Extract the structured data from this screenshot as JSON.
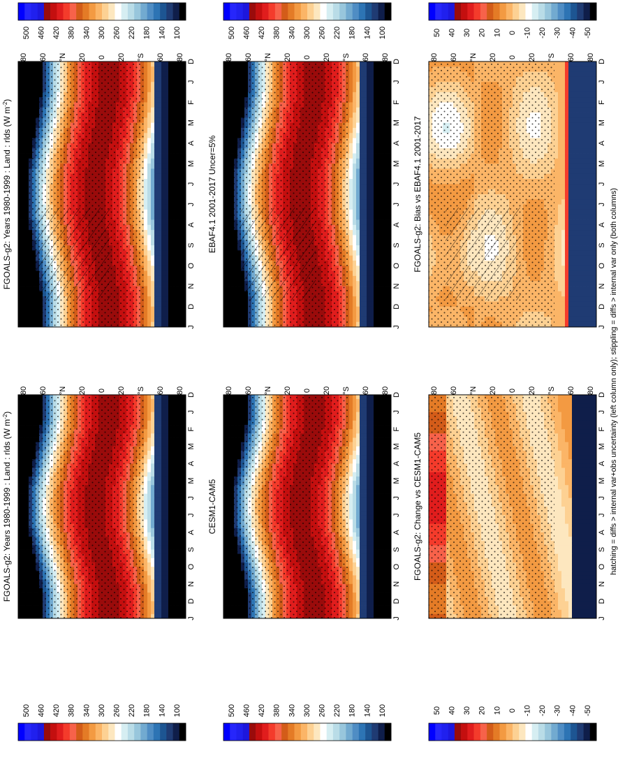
{
  "figure": {
    "footnote": "hatching = diffs > internal var+obs uncertainty (left column only); stippling = diffs > internal var only (both columns)"
  },
  "palettes": {
    "absolute": [
      "#000000",
      "#0f1e4a",
      "#1f3b73",
      "#1d5592",
      "#2d74b4",
      "#4f8dc4",
      "#72aad0",
      "#98c6dc",
      "#b9dce7",
      "#d6eef2",
      "#ffffff",
      "#fde7bf",
      "#fdd193",
      "#fbb567",
      "#f39a42",
      "#e47b26",
      "#d35c19",
      "#f7624a",
      "#f43b2b",
      "#e01d1d",
      "#c40f0f",
      "#9a0b0b",
      "#1d17dd",
      "#2020ee",
      "#2626fb",
      "#0000ff"
    ],
    "difference": [
      "#000000",
      "#0f1e4a",
      "#1f3b73",
      "#1d5592",
      "#2d74b4",
      "#4f8dc4",
      "#72aad0",
      "#98c6dc",
      "#b9dce7",
      "#d6eef2",
      "#ffffff",
      "#fde7bf",
      "#fdd193",
      "#fbb567",
      "#f39a42",
      "#e47b26",
      "#d35c19",
      "#f7624a",
      "#f43b2b",
      "#e01d1d",
      "#c40f0f",
      "#9a0b0b",
      "#1d17dd",
      "#2020ee",
      "#2626fb",
      "#0000ff"
    ]
  },
  "colorbar_labels": {
    "absolute": [
      "500",
      "460",
      "420",
      "380",
      "340",
      "300",
      "260",
      "220",
      "180",
      "140",
      "100"
    ],
    "difference": [
      "50",
      "40",
      "30",
      "20",
      "10",
      "0",
      "-10",
      "-20",
      "-30",
      "-40",
      "-50"
    ]
  },
  "axis_labels": {
    "latitude": [
      "80",
      "60",
      "°N",
      "20",
      "0",
      "20",
      "°S",
      "60",
      "80"
    ],
    "months": [
      "D",
      "J",
      "F",
      "M",
      "A",
      "M",
      "J",
      "J",
      "A",
      "S",
      "O",
      "N",
      "D",
      "J"
    ]
  },
  "chart_data": [
    {
      "type": "heatmap",
      "id": "p1",
      "title": "FGOALS-g2: Years 1980-1999 : Land : rlds (W m",
      "title_sup": "-2",
      "title_end": ")",
      "colorbar": "absolute",
      "x": "month",
      "y": "latitude",
      "y_range": [
        -90,
        90
      ],
      "x_categories": [
        "D",
        "J",
        "F",
        "M",
        "A",
        "M",
        "J",
        "J",
        "A",
        "S",
        "O",
        "N",
        "D",
        "J"
      ],
      "values_range": [
        100,
        500
      ],
      "peak": "~430 near equator (Jul–Aug, 10°N)",
      "hatching": true,
      "stippling": true
    },
    {
      "type": "heatmap",
      "id": "p2",
      "title": "FGOALS-g2: Years 1980-1999 : Land : rlds (W m",
      "title_sup": "-2",
      "title_end": ")",
      "colorbar": "absolute",
      "x": "month",
      "y": "latitude",
      "y_range": [
        -90,
        90
      ],
      "x_categories": [
        "D",
        "J",
        "F",
        "M",
        "A",
        "M",
        "J",
        "J",
        "A",
        "S",
        "O",
        "N",
        "D",
        "J"
      ],
      "values_range": [
        100,
        500
      ],
      "stippling": true
    },
    {
      "type": "heatmap",
      "id": "p3",
      "title": "EBAF4.1 2001-2017 Uncer=5%",
      "title_sup": "",
      "title_end": "",
      "colorbar": "absolute",
      "x": "month",
      "y": "latitude",
      "y_range": [
        -90,
        90
      ],
      "x_categories": [
        "D",
        "J",
        "F",
        "M",
        "A",
        "M",
        "J",
        "J",
        "A",
        "S",
        "O",
        "N",
        "D",
        "J"
      ],
      "values_range": [
        100,
        500
      ],
      "hatching": true,
      "stippling": true
    },
    {
      "type": "heatmap",
      "id": "p4",
      "title": "CESM1-CAM5",
      "title_sup": "",
      "title_end": "",
      "colorbar": "absolute",
      "x": "month",
      "y": "latitude",
      "y_range": [
        -90,
        90
      ],
      "x_categories": [
        "D",
        "J",
        "F",
        "M",
        "A",
        "M",
        "J",
        "J",
        "A",
        "S",
        "O",
        "N",
        "D",
        "J"
      ],
      "values_range": [
        100,
        500
      ],
      "stippling": true
    },
    {
      "type": "heatmap",
      "id": "p5",
      "title": "FGOALS-g2: Bias vs EBAF4.1 2001-2017",
      "title_sup": "",
      "title_end": "",
      "colorbar": "difference",
      "x": "month",
      "y": "latitude",
      "y_range": [
        -90,
        90
      ],
      "x_categories": [
        "D",
        "J",
        "F",
        "M",
        "A",
        "M",
        "J",
        "J",
        "A",
        "S",
        "O",
        "N",
        "D",
        "J"
      ],
      "values_range": [
        -50,
        50
      ],
      "hatching": true,
      "stippling": true
    },
    {
      "type": "heatmap",
      "id": "p6",
      "title": "FGOALS-g2: Change vs CESM1-CAM5",
      "title_sup": "",
      "title_end": "",
      "colorbar": "difference",
      "x": "month",
      "y": "latitude",
      "y_range": [
        -90,
        90
      ],
      "x_categories": [
        "D",
        "J",
        "F",
        "M",
        "A",
        "M",
        "J",
        "J",
        "A",
        "S",
        "O",
        "N",
        "D",
        "J"
      ],
      "values_range": [
        -50,
        50
      ],
      "stippling": true
    }
  ]
}
